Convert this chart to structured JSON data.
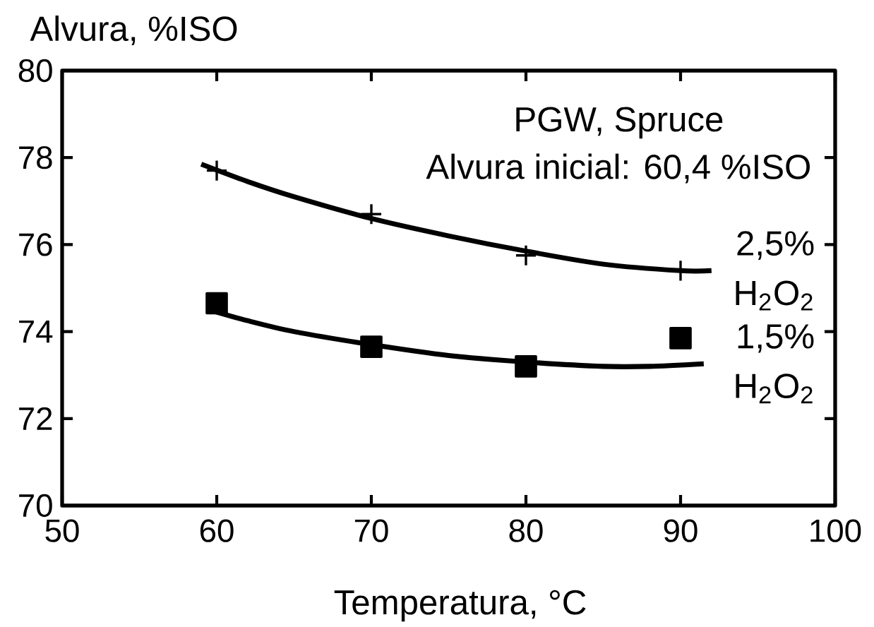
{
  "chart_data": {
    "type": "scatter",
    "xlabel": "Temperatura, °C",
    "ylabel": "Alvura, %ISO",
    "xlim": [
      50,
      100
    ],
    "xticks": [
      50,
      60,
      70,
      80,
      90,
      100
    ],
    "ylim": [
      70,
      80
    ],
    "yticks": [
      70,
      72,
      74,
      76,
      78,
      80
    ],
    "grid": false,
    "legend": "right",
    "line_style": "solid",
    "annotations": [
      "PGW, Spruce",
      "Alvura inicial: 60,4 %ISO"
    ],
    "series": [
      {
        "name": "2,5% H$_{2}$O$_{2}$",
        "marker": "cross",
        "color": "#000000",
        "x": [
          60,
          70,
          80,
          90
        ],
        "values": [
          77.7,
          76.7,
          75.75,
          75.4
        ]
      },
      {
        "name": "1,5% H$_{2}$O$_{2}$",
        "marker": "square",
        "color": "#000000",
        "x": [
          60,
          70,
          80,
          90
        ],
        "values": [
          74.65,
          73.65,
          73.2,
          73.85
        ]
      },
      {
        "type": "line",
        "color": "#000000",
        "x": [
          59,
          62,
          65,
          70,
          75,
          80,
          85,
          90,
          92
        ],
        "values": [
          77.85,
          77.45,
          77.1,
          76.6,
          76.2,
          75.85,
          75.55,
          75.4,
          75.4
        ]
      },
      {
        "type": "line",
        "color": "#000000",
        "x": [
          59.5,
          62,
          65,
          70,
          75,
          80,
          85,
          88,
          91.5
        ],
        "values": [
          74.5,
          74.25,
          74.0,
          73.7,
          73.45,
          73.3,
          73.2,
          73.2,
          73.26
        ]
      }
    ]
  }
}
